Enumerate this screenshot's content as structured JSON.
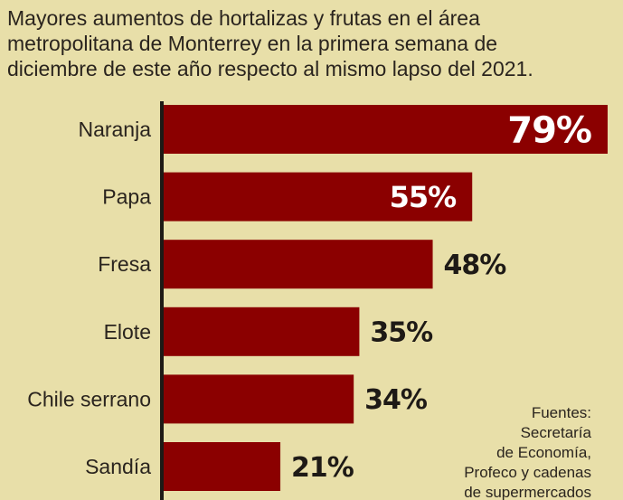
{
  "title_lines": [
    "Mayores aumentos de hortalizas y frutas en el área",
    "metropolitana de Monterrey en la primera semana de",
    "diciembre de este año respecto al mismo lapso del 2021."
  ],
  "source_lines": [
    "Fuentes:",
    "Secretaría",
    "de Economía,",
    "Profeco y cadenas",
    "de supermercados"
  ],
  "colors": {
    "background": "#e8dfa9",
    "bar": "#8b0000",
    "axis": "#1e1a16",
    "label_inside": "#ffffff",
    "label_outside": "#1e1a16"
  },
  "chart_data": {
    "type": "bar",
    "orientation": "horizontal",
    "title": "Mayores aumentos de hortalizas y frutas en el área metropolitana de Monterrey en la primera semana de diciembre de este año respecto al mismo lapso del 2021.",
    "categories": [
      "Naranja",
      "Papa",
      "Fresa",
      "Elote",
      "Chile serrano",
      "Sandía"
    ],
    "values": [
      79,
      55,
      48,
      35,
      34,
      21
    ],
    "value_labels": [
      "79%",
      "55%",
      "48%",
      "35%",
      "34%",
      "21%"
    ],
    "unit": "%",
    "xlim": [
      0,
      79
    ],
    "grid": false,
    "legend": "none"
  }
}
